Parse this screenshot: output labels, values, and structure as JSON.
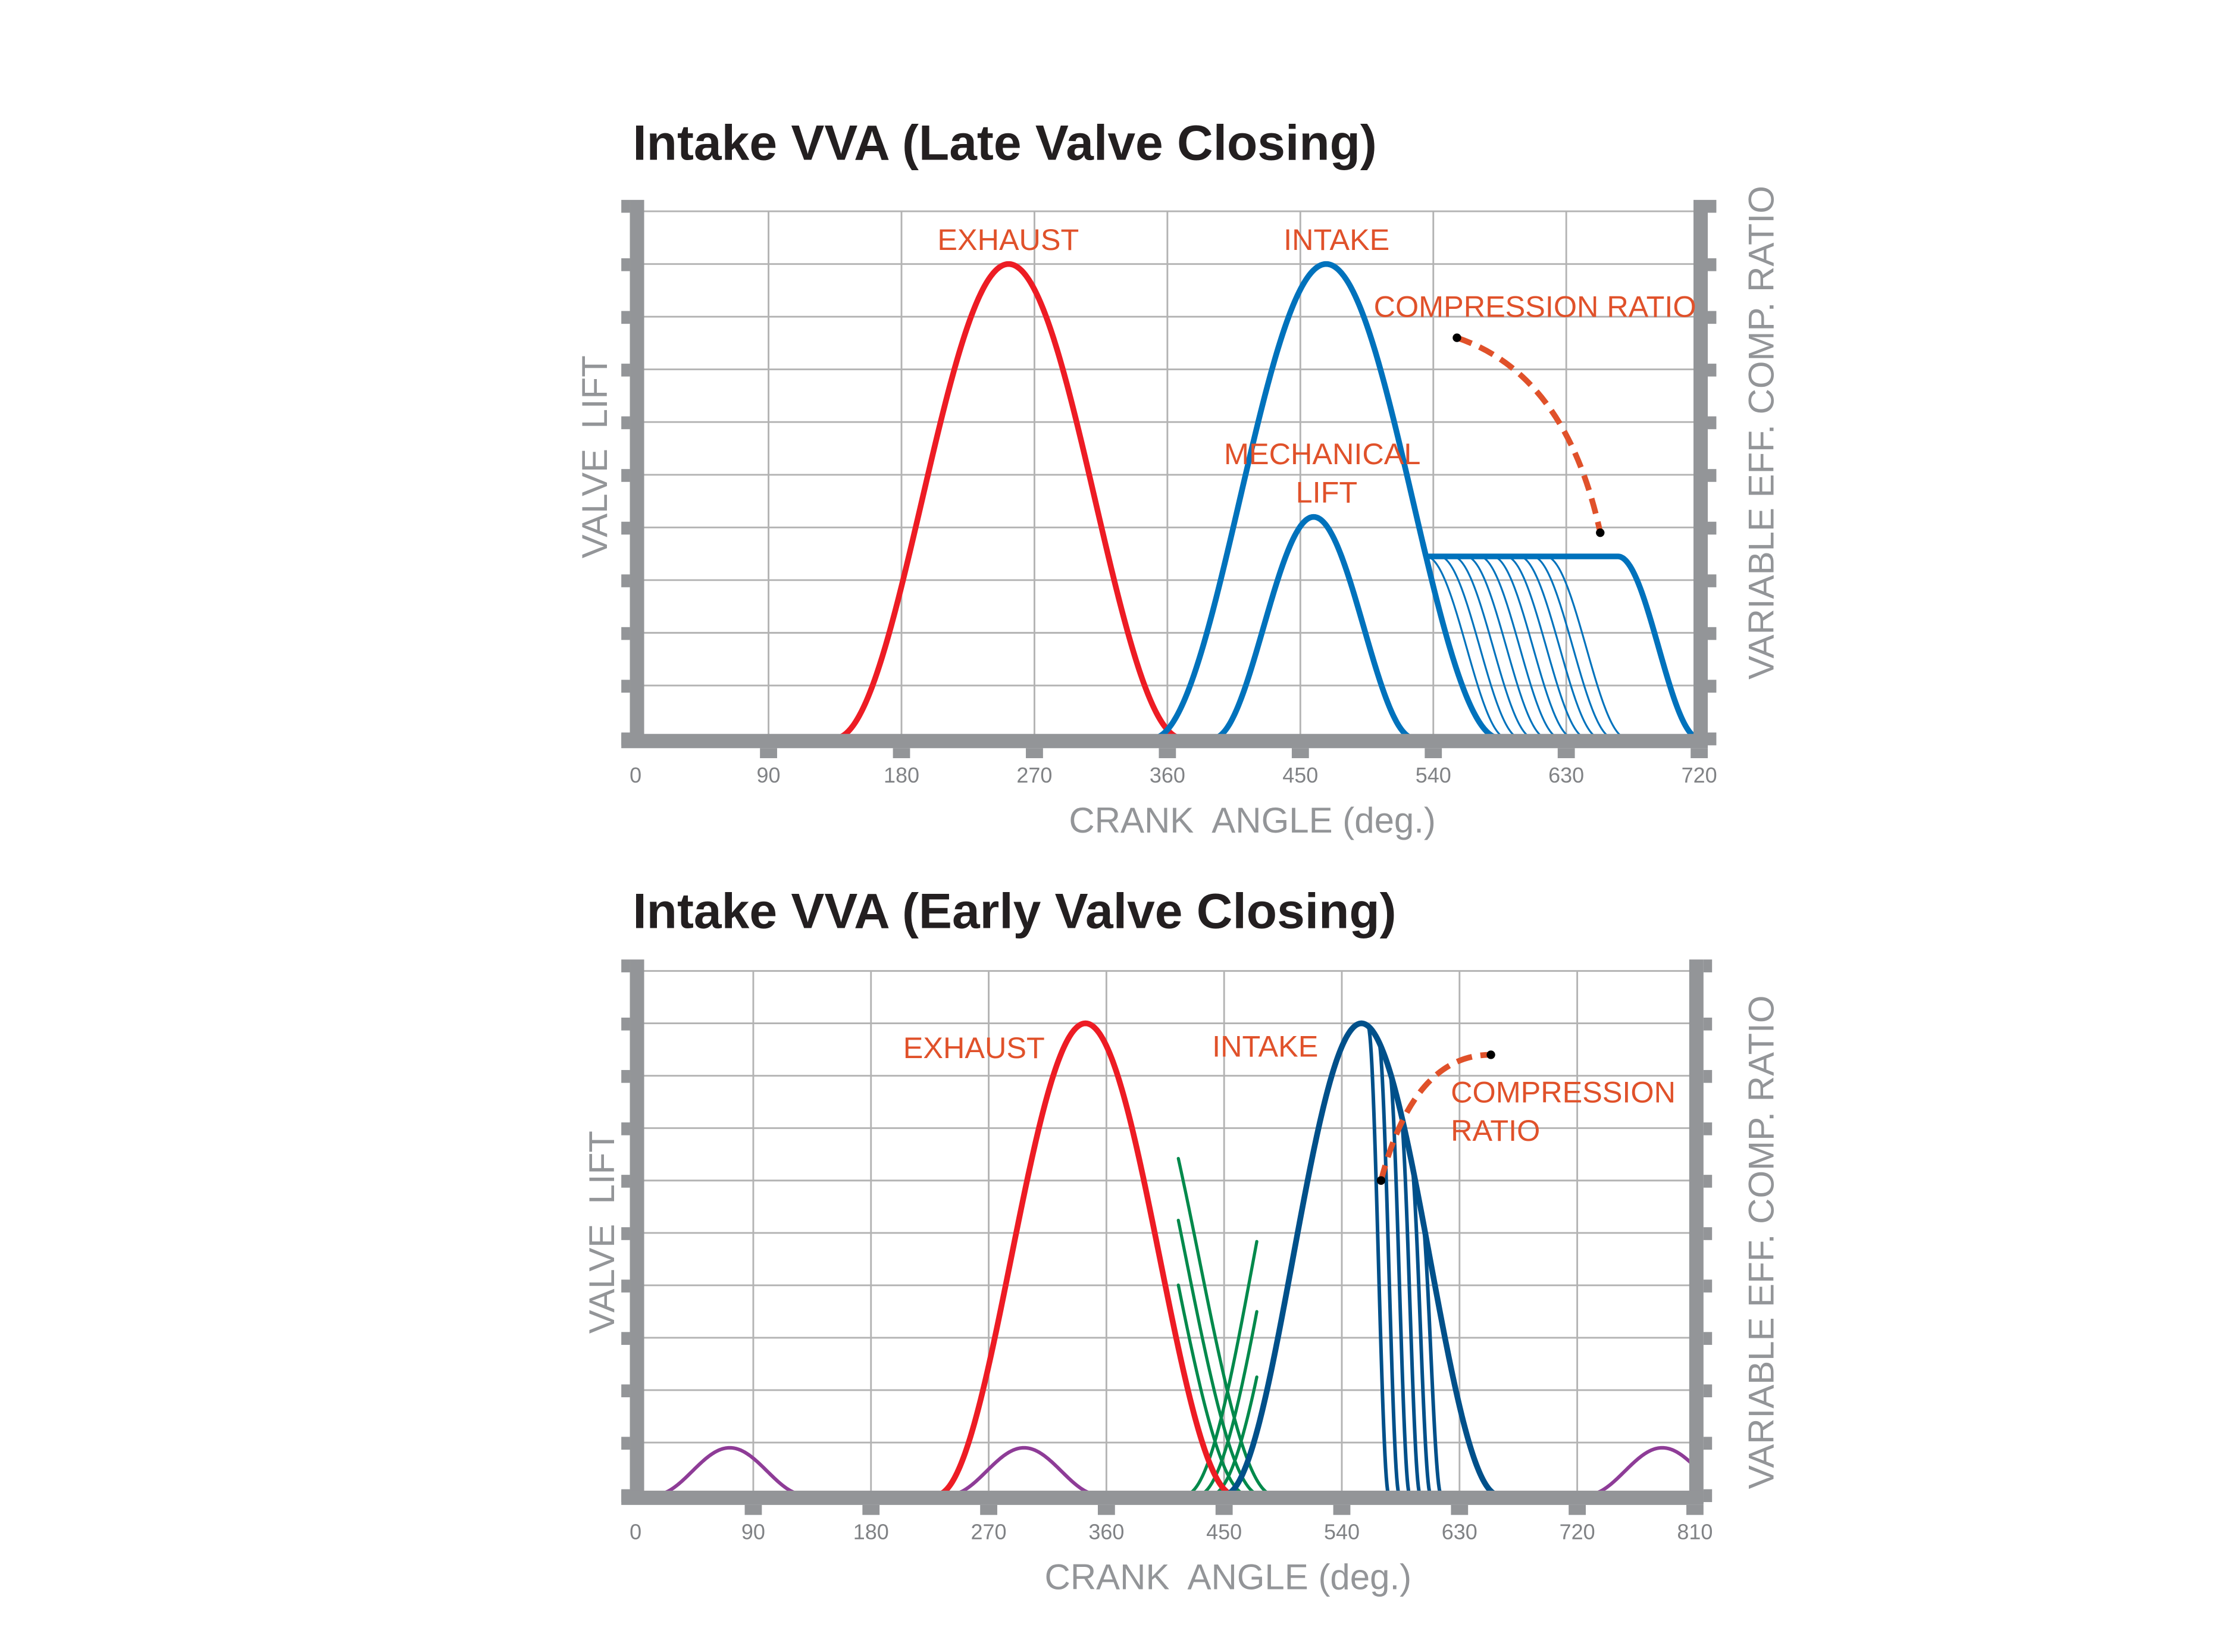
{
  "chart_data": [
    {
      "type": "line",
      "title": "Intake VVA (Late Valve Closing)",
      "xlabel": "CRANK  ANGLE (deg.)",
      "ylabel": "VALVE  LIFT",
      "y2label": "VARIABLE EFF. COMP. RATIO",
      "xlim": [
        0,
        720
      ],
      "ylim": [
        0,
        10
      ],
      "xticks": [
        0,
        90,
        180,
        270,
        360,
        450,
        540,
        630,
        720
      ],
      "grid": true,
      "colors": {
        "exhaust": "#ed1c24",
        "intake": "#0072bc",
        "ratio": "#e0512a",
        "axis": "#939598",
        "grid": "#b3b3b3"
      },
      "series": [
        {
          "name": "EXHAUST",
          "shape": "cosine",
          "start": 135,
          "end": 370,
          "peak_lift": 9
        },
        {
          "name": "INTAKE",
          "shape": "cosine",
          "start": 350,
          "end": 585,
          "peak_lift": 9
        },
        {
          "name": "MECHANICAL LIFT",
          "shape": "cosine",
          "start": 391,
          "end": 527,
          "peak_lift": 4.2
        },
        {
          "name": "INTAKE late closing (held)",
          "plateau_lift": 3.45,
          "closing_start": 665,
          "closing_end": 720
        },
        {
          "name": "INTAKE closing family",
          "closing_starts": [
            535,
            544,
            553,
            562,
            571,
            580,
            589,
            598,
            607,
            616
          ],
          "closing_duration": 55
        }
      ],
      "ratio_curve": {
        "from": [
          556,
          7.6
        ],
        "to": [
          653,
          3.9
        ],
        "control": [
          630,
          6.9
        ],
        "style": "dashed"
      },
      "annotations": [
        {
          "text": "EXHAUST"
        },
        {
          "text": "INTAKE"
        },
        {
          "text": "COMPRESSION RATIO"
        },
        {
          "text": "MECHANICAL"
        },
        {
          "text": "LIFT"
        }
      ]
    },
    {
      "type": "line",
      "title": "Intake VVA (Early Valve Closing)",
      "xlabel": "CRANK  ANGLE (deg.)",
      "ylabel": "VALVE  LIFT",
      "y2label": "VARIABLE EFF. COMP. RATIO",
      "xlim": [
        0,
        810
      ],
      "ylim": [
        0,
        10
      ],
      "xticks": [
        0,
        90,
        180,
        270,
        360,
        450,
        540,
        630,
        720,
        810
      ],
      "grid": true,
      "colors": {
        "exhaust": "#ed1c24",
        "intake": "#00508a",
        "overlap": "#00894b",
        "secondary": "#8e3c97",
        "ratio": "#e0512a",
        "axis": "#939598",
        "grid": "#b3b3b3"
      },
      "series": [
        {
          "name": "EXHAUST",
          "shape": "cosine",
          "start": 230,
          "end": 458,
          "peak_lift": 9
        },
        {
          "name": "INTAKE",
          "shape": "cosine",
          "start": 450,
          "end": 660,
          "peak_lift": 9
        },
        {
          "name": "INTAKE early closing family",
          "closing_starts": [
            560,
            568,
            576,
            584,
            592,
            600
          ],
          "closing_duration": 16
        },
        {
          "name": "overlap variants",
          "exhaust_shifts": [
            10,
            20,
            30
          ],
          "intake_shifts": [
            -10,
            -20,
            -30
          ],
          "window": [
            415,
            480
          ]
        },
        {
          "name": "secondary lift",
          "bumps": [
            {
              "center": 72,
              "width": 115,
              "lift": 0.9
            },
            {
              "center": 297,
              "width": 115,
              "lift": 0.9
            },
            {
              "center": 785,
              "width": 115,
              "lift": 0.9
            }
          ]
        }
      ],
      "ratio_curve": {
        "from": [
          570,
          6.0
        ],
        "to": [
          654,
          8.4
        ],
        "control": [
          595,
          8.4
        ],
        "style": "dashed"
      },
      "annotations": [
        {
          "text": "EXHAUST"
        },
        {
          "text": "INTAKE"
        },
        {
          "text": "COMPRESSION"
        },
        {
          "text": "RATIO"
        }
      ]
    }
  ]
}
